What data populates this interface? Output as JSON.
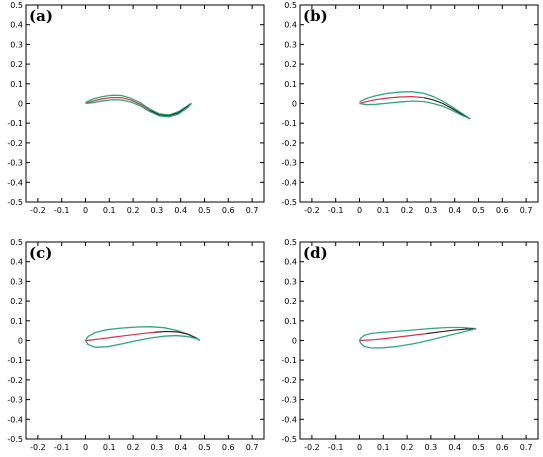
{
  "figure": {
    "panels": [
      "(a)",
      "(b)",
      "(c)",
      "(d)"
    ]
  },
  "colors": {
    "surface": "#2fa87c",
    "camber_line": "#d9324a",
    "camber_dark": "#3a1f1f",
    "axis": "#000000"
  },
  "chart_data": [
    {
      "type": "line",
      "panel_label": "(a)",
      "xlim": [
        -0.25,
        0.75
      ],
      "ylim": [
        -0.5,
        0.5
      ],
      "x_ticks": [
        "-0.2",
        "-0.1",
        "0",
        "0.1",
        "0.2",
        "0.3",
        "0.4",
        "0.5",
        "0.6",
        "0.7"
      ],
      "y_ticks": [
        "0.5",
        "0.4",
        "0.3",
        "0.2",
        "0.1",
        "0",
        "-0.1",
        "-0.2",
        "-0.3",
        "-0.4",
        "-0.5"
      ],
      "series": [
        {
          "role": "upper",
          "x": [
            0,
            0.03,
            0.07,
            0.11,
            0.15,
            0.19,
            0.23,
            0.27,
            0.31,
            0.35,
            0.39,
            0.43,
            0.445
          ],
          "y": [
            0.005,
            0.022,
            0.035,
            0.042,
            0.041,
            0.027,
            0.004,
            -0.028,
            -0.052,
            -0.058,
            -0.042,
            -0.01,
            0.0
          ]
        },
        {
          "role": "camber",
          "x": [
            0,
            0.03,
            0.07,
            0.11,
            0.15,
            0.19,
            0.23,
            0.27,
            0.31,
            0.35,
            0.39,
            0.43,
            0.445
          ],
          "y": [
            0.0,
            0.012,
            0.024,
            0.03,
            0.03,
            0.018,
            -0.004,
            -0.035,
            -0.058,
            -0.063,
            -0.048,
            -0.015,
            0.0
          ]
        },
        {
          "role": "lower",
          "x": [
            0,
            0.03,
            0.07,
            0.11,
            0.15,
            0.19,
            0.23,
            0.27,
            0.31,
            0.35,
            0.39,
            0.43,
            0.445
          ],
          "y": [
            0.0,
            0.004,
            0.013,
            0.019,
            0.018,
            0.008,
            -0.012,
            -0.041,
            -0.063,
            -0.068,
            -0.054,
            -0.02,
            0.0
          ]
        }
      ]
    },
    {
      "type": "line",
      "panel_label": "(b)",
      "xlim": [
        -0.25,
        0.75
      ],
      "ylim": [
        -0.5,
        0.5
      ],
      "x_ticks": [
        "-0.2",
        "-0.1",
        "0",
        "0.1",
        "0.2",
        "0.3",
        "0.4",
        "0.5",
        "0.6",
        "0.7"
      ],
      "y_ticks": [
        "0.5",
        "0.4",
        "0.3",
        "0.2",
        "0.1",
        "0",
        "-0.1",
        "-0.2",
        "-0.3",
        "-0.4",
        "-0.5"
      ],
      "series": [
        {
          "role": "upper",
          "x": [
            0,
            0.03,
            0.07,
            0.12,
            0.17,
            0.22,
            0.27,
            0.31,
            0.35,
            0.39,
            0.43,
            0.465
          ],
          "y": [
            0.008,
            0.026,
            0.04,
            0.052,
            0.058,
            0.06,
            0.052,
            0.035,
            0.012,
            -0.018,
            -0.05,
            -0.078
          ]
        },
        {
          "role": "camber",
          "x": [
            0,
            0.03,
            0.07,
            0.12,
            0.17,
            0.22,
            0.27,
            0.31,
            0.35,
            0.39,
            0.43,
            0.465
          ],
          "y": [
            0.0,
            0.01,
            0.02,
            0.028,
            0.033,
            0.035,
            0.03,
            0.018,
            0.0,
            -0.026,
            -0.055,
            -0.078
          ]
        },
        {
          "role": "lower",
          "x": [
            0,
            0.03,
            0.07,
            0.12,
            0.17,
            0.22,
            0.27,
            0.31,
            0.35,
            0.39,
            0.43,
            0.465
          ],
          "y": [
            0.0,
            -0.006,
            -0.004,
            0.002,
            0.008,
            0.012,
            0.01,
            0.0,
            -0.014,
            -0.035,
            -0.06,
            -0.078
          ]
        }
      ]
    },
    {
      "type": "line",
      "panel_label": "(c)",
      "xlim": [
        -0.25,
        0.75
      ],
      "ylim": [
        -0.5,
        0.5
      ],
      "x_ticks": [
        "-0.2",
        "-0.1",
        "0",
        "0.1",
        "0.2",
        "0.3",
        "0.4",
        "0.5",
        "0.6",
        "0.7"
      ],
      "y_ticks": [
        "0.5",
        "0.4",
        "0.3",
        "0.2",
        "0.1",
        "0",
        "-0.1",
        "-0.2",
        "-0.3",
        "-0.4",
        "-0.5"
      ],
      "series": [
        {
          "role": "upper",
          "x": [
            0,
            0.01,
            0.04,
            0.09,
            0.15,
            0.21,
            0.27,
            0.33,
            0.38,
            0.43,
            0.47,
            0.48
          ],
          "y": [
            0.0,
            0.02,
            0.04,
            0.055,
            0.063,
            0.068,
            0.07,
            0.065,
            0.052,
            0.032,
            0.01,
            0.0
          ]
        },
        {
          "role": "camber",
          "x": [
            0,
            0.02,
            0.06,
            0.11,
            0.17,
            0.23,
            0.29,
            0.34,
            0.39,
            0.43,
            0.46,
            0.48
          ],
          "y": [
            0.0,
            0.002,
            0.008,
            0.016,
            0.025,
            0.034,
            0.042,
            0.046,
            0.043,
            0.032,
            0.016,
            0.0
          ]
        },
        {
          "role": "lower",
          "x": [
            0,
            0.01,
            0.04,
            0.09,
            0.15,
            0.21,
            0.27,
            0.33,
            0.38,
            0.43,
            0.47,
            0.48
          ],
          "y": [
            0.0,
            -0.02,
            -0.034,
            -0.032,
            -0.018,
            -0.002,
            0.012,
            0.022,
            0.025,
            0.02,
            0.008,
            0.0
          ]
        }
      ]
    },
    {
      "type": "line",
      "panel_label": "(d)",
      "xlim": [
        -0.25,
        0.75
      ],
      "ylim": [
        -0.5,
        0.5
      ],
      "x_ticks": [
        "-0.2",
        "-0.1",
        "0",
        "0.1",
        "0.2",
        "0.3",
        "0.4",
        "0.5",
        "0.6",
        "0.7"
      ],
      "y_ticks": [
        "0.5",
        "0.4",
        "0.3",
        "0.2",
        "0.1",
        "0",
        "-0.1",
        "-0.2",
        "-0.3",
        "-0.4",
        "-0.5"
      ],
      "series": [
        {
          "role": "upper",
          "x": [
            0,
            0.005,
            0.02,
            0.05,
            0.1,
            0.16,
            0.23,
            0.3,
            0.37,
            0.43,
            0.47,
            0.49
          ],
          "y": [
            0.0,
            0.012,
            0.026,
            0.036,
            0.042,
            0.047,
            0.054,
            0.061,
            0.066,
            0.066,
            0.062,
            0.06
          ]
        },
        {
          "role": "camber",
          "x": [
            0,
            0.05,
            0.1,
            0.16,
            0.22,
            0.28,
            0.34,
            0.4,
            0.45,
            0.49
          ],
          "y": [
            0.0,
            0.003,
            0.009,
            0.017,
            0.026,
            0.035,
            0.044,
            0.053,
            0.058,
            0.06
          ]
        },
        {
          "role": "lower",
          "x": [
            0,
            0.005,
            0.02,
            0.05,
            0.1,
            0.16,
            0.23,
            0.3,
            0.37,
            0.43,
            0.47,
            0.49
          ],
          "y": [
            0.0,
            -0.014,
            -0.03,
            -0.038,
            -0.037,
            -0.03,
            -0.016,
            0.003,
            0.024,
            0.042,
            0.054,
            0.06
          ]
        }
      ]
    }
  ]
}
